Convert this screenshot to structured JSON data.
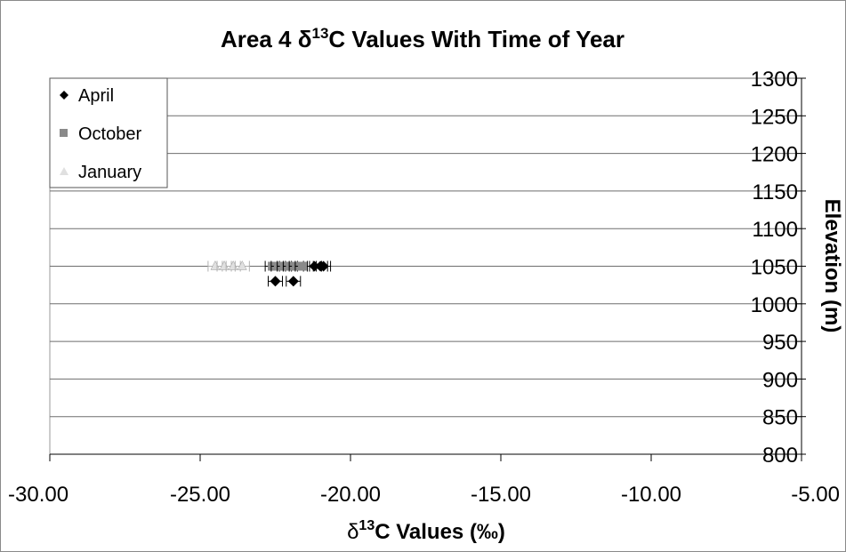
{
  "chart_data": {
    "type": "scatter",
    "title": {
      "prefix": "Area 4 ",
      "delta": "δ",
      "superscript": "13",
      "suffix": "C Values With Time of Year"
    },
    "xlabel": {
      "delta": "δ",
      "superscript": "13",
      "suffix": "C Values (‰)"
    },
    "ylabel": "Elevation (m)",
    "xlim": [
      -30,
      -5
    ],
    "ylim": [
      800,
      1300
    ],
    "xticks": [
      -30,
      -25,
      -20,
      -15,
      -10,
      -5
    ],
    "xtick_labels": [
      "-30.00",
      "-25.00",
      "-20.00",
      "-15.00",
      "-10.00",
      "-5.00"
    ],
    "yticks": [
      800,
      850,
      900,
      950,
      1000,
      1050,
      1100,
      1150,
      1200,
      1250,
      1300
    ],
    "ytick_labels": [
      "800",
      "850",
      "900",
      "950",
      "1000",
      "1050",
      "1100",
      "1150",
      "1200",
      "1250",
      "1300"
    ],
    "grid": "horizontal",
    "legend_position": "top-left",
    "series": [
      {
        "name": "April",
        "marker": "diamond",
        "color": "#000000",
        "x": [
          -21.2,
          -21.0,
          -20.9,
          -22.5,
          -21.9
        ],
        "y": [
          1050,
          1050,
          1050,
          1030,
          1030
        ]
      },
      {
        "name": "October",
        "marker": "square",
        "color": "#8a8a8a",
        "x": [
          -22.6,
          -22.4,
          -22.2,
          -22.0,
          -21.8,
          -21.6
        ],
        "y": [
          1050,
          1050,
          1050,
          1050,
          1050,
          1050
        ]
      },
      {
        "name": "January",
        "marker": "triangle",
        "color": "#e0e0e0",
        "x": [
          -24.5,
          -24.2,
          -23.9,
          -23.6
        ],
        "y": [
          1050,
          1050,
          1050,
          1050
        ]
      }
    ]
  }
}
